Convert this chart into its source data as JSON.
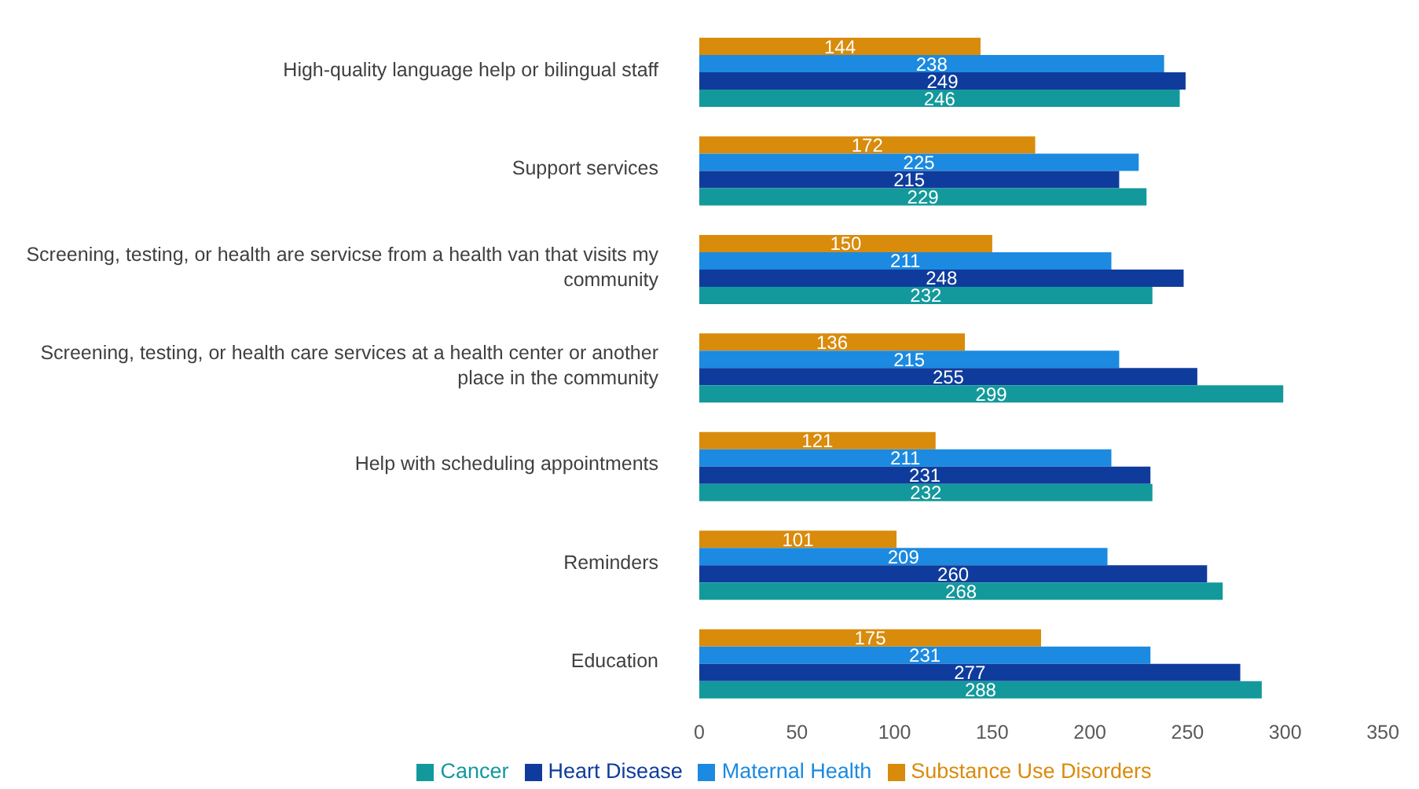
{
  "chart_data": {
    "type": "bar",
    "orientation": "horizontal",
    "categories": [
      "High-quality language help or bilingual staff",
      "Support services",
      "Screening, testing, or health are servicse from a health van that visits my community",
      "Screening, testing, or health care services at a health center or another place in the community",
      "Help with scheduling appointments",
      "Reminders",
      "Education"
    ],
    "series": [
      {
        "name": "Substance Use Disorders",
        "color": "#d98b0c",
        "values": [
          144,
          172,
          150,
          136,
          121,
          101,
          175
        ]
      },
      {
        "name": "Maternal Health",
        "color": "#1b8ae0",
        "values": [
          238,
          225,
          211,
          215,
          211,
          209,
          231
        ]
      },
      {
        "name": "Heart Disease",
        "color": "#0f3c9c",
        "values": [
          249,
          215,
          248,
          255,
          231,
          260,
          277
        ]
      },
      {
        "name": "Cancer",
        "color": "#13999b",
        "values": [
          246,
          229,
          232,
          299,
          232,
          268,
          288
        ]
      }
    ],
    "xlim": [
      0,
      350
    ],
    "xticks": [
      0,
      50,
      100,
      150,
      200,
      250,
      300,
      350
    ],
    "grid": false,
    "legend": "bottom",
    "data_labels": true
  }
}
